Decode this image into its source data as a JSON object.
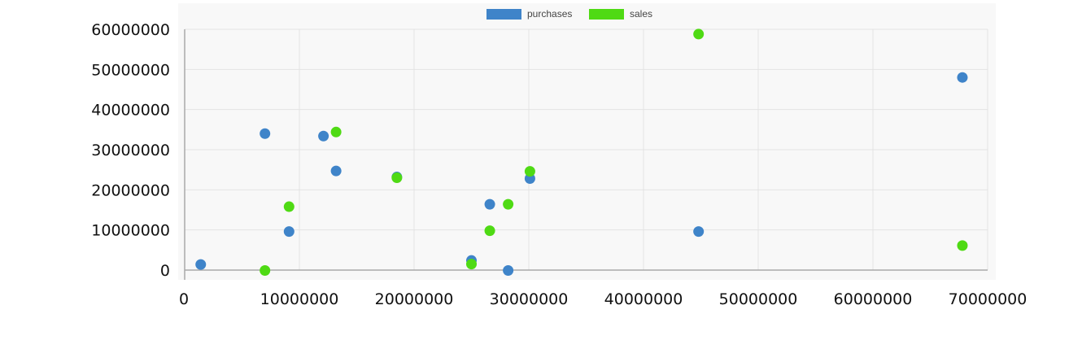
{
  "chart_data": {
    "type": "scatter",
    "title": "",
    "xlabel": "",
    "ylabel": "",
    "xlim": [
      0,
      70000000
    ],
    "ylim": [
      0,
      60000000
    ],
    "x_ticks": [
      0,
      10000000,
      20000000,
      30000000,
      40000000,
      50000000,
      60000000,
      70000000
    ],
    "y_ticks": [
      0,
      10000000,
      20000000,
      30000000,
      40000000,
      50000000,
      60000000
    ],
    "grid": true,
    "legend_position": "top-center",
    "series": [
      {
        "name": "purchases",
        "color": "#3f84c9",
        "points": [
          [
            1400000,
            1400000
          ],
          [
            7000000,
            34000000
          ],
          [
            9100000,
            9600000
          ],
          [
            12100000,
            33400000
          ],
          [
            13200000,
            24700000
          ],
          [
            18500000,
            23200000
          ],
          [
            25000000,
            2400000
          ],
          [
            26600000,
            16400000
          ],
          [
            28200000,
            -100000
          ],
          [
            30100000,
            22800000
          ],
          [
            44800000,
            9600000
          ],
          [
            67800000,
            48000000
          ]
        ]
      },
      {
        "name": "sales",
        "color": "#4fda14",
        "points": [
          [
            7000000,
            -100000
          ],
          [
            9100000,
            15800000
          ],
          [
            13200000,
            34400000
          ],
          [
            18500000,
            23000000
          ],
          [
            25000000,
            1500000
          ],
          [
            26600000,
            9800000
          ],
          [
            28200000,
            16400000
          ],
          [
            30100000,
            24600000
          ],
          [
            44800000,
            58800000
          ],
          [
            67800000,
            6100000
          ]
        ]
      }
    ]
  }
}
